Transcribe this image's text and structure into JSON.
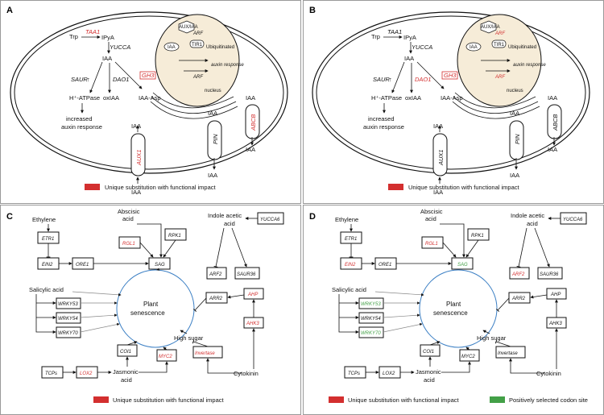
{
  "panels": {
    "A": {
      "label": "A"
    },
    "B": {
      "label": "B"
    },
    "C": {
      "label": "C"
    },
    "D": {
      "label": "D"
    }
  },
  "auxin": {
    "trp": "Trp",
    "taa1": "TAA1",
    "ipya": "IPyA",
    "yucca": "YUCCA",
    "iaa": "IAA",
    "saur": "SAUR",
    "dao1": "DAO1",
    "gh3": "GH3",
    "h_atpase": "H⁺-ATPase",
    "oxiaa": "oxIAA",
    "iaa_asp": "IAA-Asp",
    "increased": "increased",
    "auxin_response": "auxin response",
    "aux_iaa": "AUX/IAA",
    "tir1": "TIR1",
    "arf": "ARF",
    "ubiquitinated": "Ubiquitinated",
    "auxin_response_nuc": "auxin response",
    "nucleus": "nucleus",
    "aux1": "AUX1",
    "pin": "PIN",
    "abcb": "ABCB"
  },
  "senescence": {
    "ethylene": "Ethylene",
    "etr1": "ETR1",
    "ein2": "EIN2",
    "ore1": "ORE1",
    "abscisic": "Abscisic",
    "acid": "acid",
    "rgl1": "RGL1",
    "rpk1": "RPK1",
    "sag": "SAG",
    "indole_acetic": "Indole acetic",
    "yucca6": "YUCCA6",
    "arf2": "ARF2",
    "saur36": "SAUR36",
    "salicylic": "Salicylic acid",
    "wrky53": "WRKY53",
    "wrky54": "WRKY54",
    "wrky70": "WRKY70",
    "plant": "Plant",
    "senescence": "senescence",
    "arr2": "ARR2",
    "ahp": "AHP",
    "high_sugar": "High sugar",
    "ahk3": "AHK3",
    "invertase": "Invertase",
    "coi1": "COI1",
    "myc2": "MYC2",
    "tcps": "TCPs",
    "lox2": "LOX2",
    "jasmonic": "Jasmonic",
    "cytokinin": "Cytokinin"
  },
  "legend": {
    "unique": "Unique substitution with functional impact",
    "positive": "Positively selected codon site"
  },
  "colors": {
    "red": "#d32f2f",
    "green": "#43a047",
    "circle": "#3b7fc4",
    "nucleus": "#f6ecd8"
  }
}
